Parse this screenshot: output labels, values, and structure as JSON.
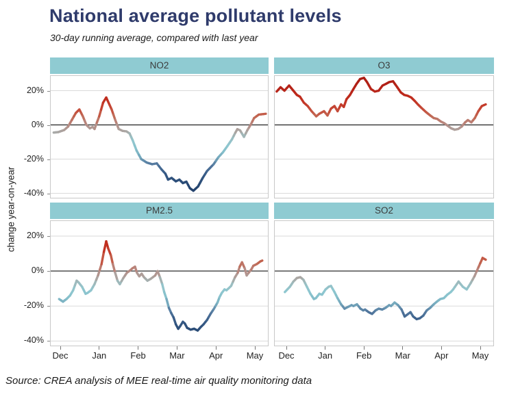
{
  "title": "National average pollutant levels",
  "subtitle": "30-day running average, compared with last year",
  "source_note": "Source: CREA analysis of MEE real-time air quality monitoring data",
  "y_axis_title": "change year-on-year",
  "colors": {
    "title_text": "#2F3B6B",
    "body_text": "#1A1A1A",
    "facet_header_fill": "#8FCBD2",
    "facet_header_text": "#3B3B3B",
    "panel_border": "#C8C8C8",
    "gridline": "#DADADA",
    "zero_line": "#3F3F3F",
    "axis_text": "#222222"
  },
  "chart_data": {
    "type": "line",
    "facets": [
      "NO2",
      "O3",
      "PM2.5",
      "SO2"
    ],
    "x_unit": "months, 0 = Dec 1 through 5 = May 1",
    "x_tick_labels": [
      "Dec",
      "Jan",
      "Feb",
      "Mar",
      "Apr",
      "May"
    ],
    "x_tick_positions": [
      0,
      1,
      2,
      3,
      4,
      5
    ],
    "y_ticks": [
      {
        "value": 20,
        "label": "20%"
      },
      {
        "value": 0,
        "label": "0%"
      },
      {
        "value": -20,
        "label": "-20%"
      },
      {
        "value": -40,
        "label": "-40%"
      }
    ],
    "ylim": [
      -43,
      29
    ],
    "grid": "horizontal gridlines at 20/-20/-40, dark line at 0",
    "legend": "none - line color encodes value: red positive, grey near zero, light blue negative, dark navy strongly negative",
    "value_color_stops": [
      [
        -43,
        "#1C3862"
      ],
      [
        -34,
        "#294A75"
      ],
      [
        -28,
        "#3A5E89"
      ],
      [
        -23,
        "#54799F"
      ],
      [
        -19,
        "#74A7BC"
      ],
      [
        -15,
        "#86C0CB"
      ],
      [
        -11,
        "#8FC7D0"
      ],
      [
        -7,
        "#9CBDC0"
      ],
      [
        -4,
        "#AAA7A4"
      ],
      [
        -1,
        "#B2948E"
      ],
      [
        2,
        "#BB7E73"
      ],
      [
        5,
        "#C16853"
      ],
      [
        8,
        "#C5513F"
      ],
      [
        12,
        "#C43A29"
      ],
      [
        16,
        "#BF2B1C"
      ],
      [
        21,
        "#B72419"
      ],
      [
        28,
        "#AA1C13"
      ]
    ],
    "series": [
      {
        "name": "NO2",
        "points": [
          [
            -0.17,
            -4.5
          ],
          [
            -0.05,
            -4.2
          ],
          [
            0.1,
            -3
          ],
          [
            0.2,
            -1
          ],
          [
            0.3,
            3
          ],
          [
            0.4,
            7
          ],
          [
            0.49,
            9
          ],
          [
            0.58,
            5
          ],
          [
            0.67,
            0
          ],
          [
            0.76,
            -2
          ],
          [
            0.83,
            -1.2
          ],
          [
            0.88,
            -2.4
          ],
          [
            1.0,
            5
          ],
          [
            1.1,
            13
          ],
          [
            1.18,
            16
          ],
          [
            1.32,
            9
          ],
          [
            1.41,
            3
          ],
          [
            1.5,
            -2.4
          ],
          [
            1.6,
            -3.5
          ],
          [
            1.7,
            -3.8
          ],
          [
            1.78,
            -5
          ],
          [
            1.86,
            -9
          ],
          [
            1.96,
            -15
          ],
          [
            2.08,
            -20
          ],
          [
            2.22,
            -22
          ],
          [
            2.36,
            -23
          ],
          [
            2.48,
            -22.5
          ],
          [
            2.6,
            -26
          ],
          [
            2.7,
            -28.5
          ],
          [
            2.77,
            -32
          ],
          [
            2.86,
            -31
          ],
          [
            2.97,
            -33
          ],
          [
            3.06,
            -32
          ],
          [
            3.15,
            -34
          ],
          [
            3.24,
            -33.2
          ],
          [
            3.33,
            -37
          ],
          [
            3.42,
            -38.5
          ],
          [
            3.54,
            -36
          ],
          [
            3.66,
            -31
          ],
          [
            3.77,
            -27
          ],
          [
            3.94,
            -23
          ],
          [
            4.06,
            -19
          ],
          [
            4.18,
            -16
          ],
          [
            4.29,
            -12.5
          ],
          [
            4.41,
            -8.5
          ],
          [
            4.5,
            -4.5
          ],
          [
            4.55,
            -2.5
          ],
          [
            4.62,
            -3.2
          ],
          [
            4.72,
            -7
          ],
          [
            4.81,
            -3
          ],
          [
            4.89,
            0
          ],
          [
            4.98,
            4
          ],
          [
            5.1,
            6
          ],
          [
            5.28,
            6.5
          ]
        ]
      },
      {
        "name": "O3",
        "points": [
          [
            -0.25,
            19.5
          ],
          [
            -0.15,
            22
          ],
          [
            -0.05,
            20
          ],
          [
            0.07,
            23
          ],
          [
            0.18,
            20
          ],
          [
            0.27,
            17.5
          ],
          [
            0.35,
            16.5
          ],
          [
            0.45,
            13
          ],
          [
            0.55,
            11
          ],
          [
            0.65,
            8
          ],
          [
            0.77,
            5
          ],
          [
            0.85,
            6.5
          ],
          [
            0.97,
            8
          ],
          [
            1.06,
            5.5
          ],
          [
            1.15,
            9.5
          ],
          [
            1.24,
            11
          ],
          [
            1.32,
            8
          ],
          [
            1.41,
            12
          ],
          [
            1.48,
            10.5
          ],
          [
            1.55,
            15
          ],
          [
            1.64,
            17.5
          ],
          [
            1.73,
            21
          ],
          [
            1.81,
            24
          ],
          [
            1.9,
            26.8
          ],
          [
            2.0,
            27.5
          ],
          [
            2.08,
            25
          ],
          [
            2.18,
            21
          ],
          [
            2.28,
            19.5
          ],
          [
            2.38,
            20
          ],
          [
            2.48,
            23
          ],
          [
            2.57,
            24
          ],
          [
            2.65,
            25
          ],
          [
            2.75,
            25.5
          ],
          [
            2.86,
            22
          ],
          [
            2.95,
            19
          ],
          [
            3.04,
            17.5
          ],
          [
            3.13,
            17
          ],
          [
            3.22,
            16
          ],
          [
            3.31,
            14
          ],
          [
            3.39,
            12
          ],
          [
            3.48,
            10
          ],
          [
            3.6,
            7.5
          ],
          [
            3.71,
            5.5
          ],
          [
            3.8,
            4
          ],
          [
            3.89,
            3.5
          ],
          [
            3.98,
            2
          ],
          [
            4.07,
            1
          ],
          [
            4.16,
            -0.5
          ],
          [
            4.25,
            -2
          ],
          [
            4.34,
            -2.8
          ],
          [
            4.43,
            -2.4
          ],
          [
            4.52,
            -1
          ],
          [
            4.61,
            1.5
          ],
          [
            4.68,
            2.8
          ],
          [
            4.77,
            1.5
          ],
          [
            4.86,
            4
          ],
          [
            4.95,
            8
          ],
          [
            5.04,
            11
          ],
          [
            5.14,
            12
          ]
        ]
      },
      {
        "name": "PM2.5",
        "points": [
          [
            -0.03,
            -16
          ],
          [
            0.07,
            -17.5
          ],
          [
            0.16,
            -16
          ],
          [
            0.25,
            -14
          ],
          [
            0.33,
            -11
          ],
          [
            0.42,
            -5.5
          ],
          [
            0.47,
            -6.5
          ],
          [
            0.56,
            -9
          ],
          [
            0.65,
            -13
          ],
          [
            0.7,
            -12.5
          ],
          [
            0.79,
            -11
          ],
          [
            0.88,
            -7.5
          ],
          [
            0.97,
            -2.5
          ],
          [
            1.06,
            4
          ],
          [
            1.12,
            11
          ],
          [
            1.18,
            17
          ],
          [
            1.23,
            13
          ],
          [
            1.3,
            9
          ],
          [
            1.35,
            4
          ],
          [
            1.41,
            -1
          ],
          [
            1.47,
            -5.5
          ],
          [
            1.53,
            -7.5
          ],
          [
            1.62,
            -4
          ],
          [
            1.71,
            -1
          ],
          [
            1.8,
            0.5
          ],
          [
            1.85,
            1.5
          ],
          [
            1.92,
            2.5
          ],
          [
            1.97,
            -1
          ],
          [
            2.03,
            -3
          ],
          [
            2.09,
            -1.5
          ],
          [
            2.15,
            -3.5
          ],
          [
            2.24,
            -5.5
          ],
          [
            2.32,
            -4.5
          ],
          [
            2.38,
            -3.5
          ],
          [
            2.44,
            -2.5
          ],
          [
            2.5,
            0
          ],
          [
            2.56,
            -3.5
          ],
          [
            2.62,
            -7.5
          ],
          [
            2.67,
            -12
          ],
          [
            2.73,
            -16
          ],
          [
            2.79,
            -21
          ],
          [
            2.85,
            -24
          ],
          [
            2.91,
            -26.5
          ],
          [
            2.97,
            -30.5
          ],
          [
            3.03,
            -33
          ],
          [
            3.08,
            -31.5
          ],
          [
            3.15,
            -29
          ],
          [
            3.2,
            -30
          ],
          [
            3.26,
            -32.5
          ],
          [
            3.35,
            -33.5
          ],
          [
            3.44,
            -33
          ],
          [
            3.53,
            -34
          ],
          [
            3.61,
            -32
          ],
          [
            3.68,
            -30.5
          ],
          [
            3.77,
            -28
          ],
          [
            3.86,
            -24.5
          ],
          [
            3.95,
            -21.5
          ],
          [
            4.04,
            -18
          ],
          [
            4.09,
            -15
          ],
          [
            4.15,
            -12.5
          ],
          [
            4.22,
            -10.5
          ],
          [
            4.27,
            -11
          ],
          [
            4.32,
            -10
          ],
          [
            4.39,
            -8.5
          ],
          [
            4.44,
            -6
          ],
          [
            4.49,
            -3.5
          ],
          [
            4.56,
            -1
          ],
          [
            4.61,
            2.5
          ],
          [
            4.67,
            5
          ],
          [
            4.74,
            1.5
          ],
          [
            4.79,
            -2.5
          ],
          [
            4.84,
            -1
          ],
          [
            4.91,
            1
          ],
          [
            4.96,
            3
          ],
          [
            5.05,
            4
          ],
          [
            5.14,
            5.5
          ],
          [
            5.19,
            6
          ]
        ]
      },
      {
        "name": "SO2",
        "points": [
          [
            -0.04,
            -12
          ],
          [
            0.09,
            -9
          ],
          [
            0.18,
            -6
          ],
          [
            0.27,
            -4
          ],
          [
            0.36,
            -3.5
          ],
          [
            0.44,
            -5
          ],
          [
            0.53,
            -9
          ],
          [
            0.62,
            -13
          ],
          [
            0.71,
            -16
          ],
          [
            0.76,
            -15.5
          ],
          [
            0.85,
            -13
          ],
          [
            0.92,
            -13.5
          ],
          [
            1.01,
            -10.5
          ],
          [
            1.09,
            -9
          ],
          [
            1.15,
            -8.5
          ],
          [
            1.24,
            -12
          ],
          [
            1.32,
            -15.5
          ],
          [
            1.41,
            -19
          ],
          [
            1.5,
            -21.5
          ],
          [
            1.59,
            -20.5
          ],
          [
            1.68,
            -19.5
          ],
          [
            1.73,
            -20
          ],
          [
            1.82,
            -19
          ],
          [
            1.91,
            -21.5
          ],
          [
            1.98,
            -22.5
          ],
          [
            2.03,
            -22
          ],
          [
            2.12,
            -23.5
          ],
          [
            2.21,
            -24.5
          ],
          [
            2.3,
            -22.5
          ],
          [
            2.38,
            -21.5
          ],
          [
            2.47,
            -22
          ],
          [
            2.56,
            -21
          ],
          [
            2.65,
            -19.5
          ],
          [
            2.7,
            -20
          ],
          [
            2.79,
            -18
          ],
          [
            2.88,
            -19.5
          ],
          [
            2.97,
            -22
          ],
          [
            3.05,
            -26
          ],
          [
            3.14,
            -24.5
          ],
          [
            3.2,
            -23.5
          ],
          [
            3.27,
            -26
          ],
          [
            3.36,
            -27.5
          ],
          [
            3.44,
            -27
          ],
          [
            3.53,
            -25.5
          ],
          [
            3.62,
            -22.5
          ],
          [
            3.71,
            -21
          ],
          [
            3.8,
            -19
          ],
          [
            3.88,
            -17.5
          ],
          [
            3.97,
            -16
          ],
          [
            4.06,
            -15.5
          ],
          [
            4.15,
            -13.5
          ],
          [
            4.24,
            -12
          ],
          [
            4.3,
            -10.5
          ],
          [
            4.44,
            -6
          ],
          [
            4.55,
            -9
          ],
          [
            4.65,
            -10.5
          ],
          [
            4.75,
            -7
          ],
          [
            4.85,
            -3
          ],
          [
            4.91,
            0
          ],
          [
            5.0,
            4.5
          ],
          [
            5.06,
            7.5
          ],
          [
            5.14,
            6.5
          ]
        ]
      }
    ]
  }
}
